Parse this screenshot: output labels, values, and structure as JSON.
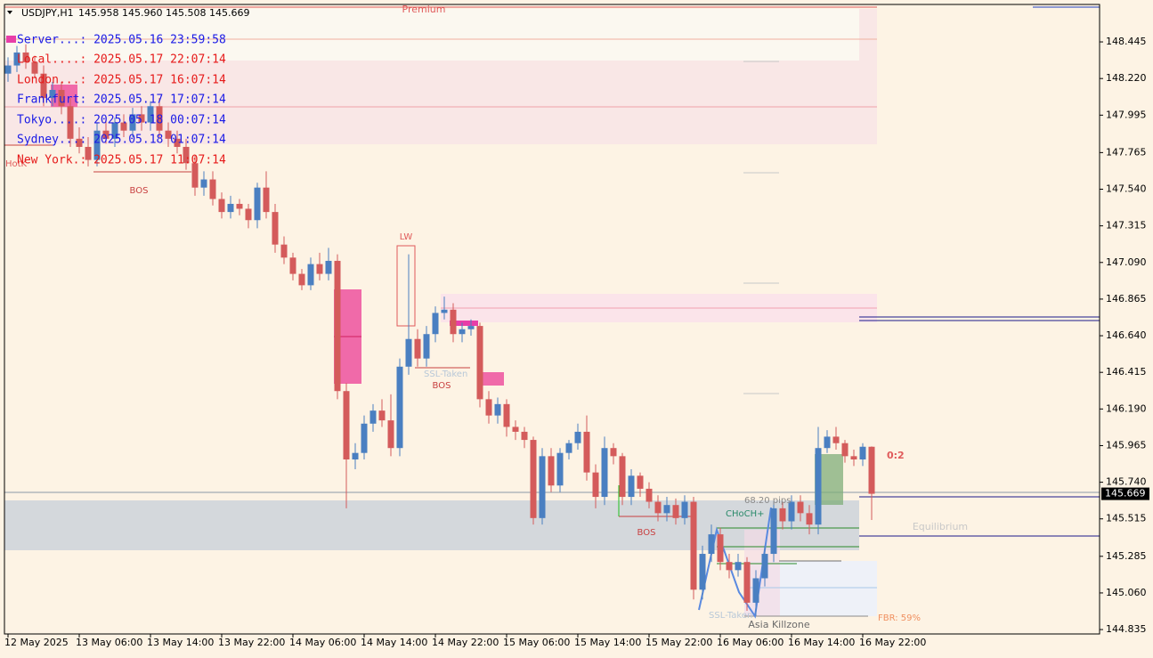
{
  "header": {
    "symbol": "USDJPY,H1",
    "ohlc": "145.958 145.960 145.508 145.669"
  },
  "clock": [
    {
      "text": "Server...: 2025.05.16 23:59:58",
      "color": "#1a1ae6"
    },
    {
      "text": "Local....: 2025.05.17 22:07:14",
      "color": "#e61a1a"
    },
    {
      "text": "London...: 2025.05.17 16:07:14",
      "color": "#e61a1a"
    },
    {
      "text": "Frankfurt: 2025.05.17 17:07:14",
      "color": "#1a1ae6"
    },
    {
      "text": "Tokyo....: 2025.05.18 00:07:14",
      "color": "#1a1ae6"
    },
    {
      "text": "Sydney...: 2025.05.18 01:07:14",
      "color": "#1a1ae6"
    },
    {
      "text": "New York.: 2025.05.17 11:07:14",
      "color": "#e61a1a"
    }
  ],
  "annotations": [
    "Premium",
    "BOS",
    "BOS",
    "BOS",
    "LW",
    "SSL-Taken",
    "SSL-Taken",
    "CHoCH+",
    "68.20 pips",
    "Asia Killzone",
    "Equilibrium",
    "FBR: 59%",
    "0:2",
    "HotK"
  ],
  "chart_data": {
    "type": "candlestick",
    "up_color": "#4a7fc1",
    "down_color": "#d45b5b",
    "ylim": [
      144.808,
      148.675
    ],
    "yticks": [
      148.445,
      {
        "value": 148.22,
        "label": "148.220"
      },
      147.995,
      147.765,
      {
        "value": 147.54,
        "label": "147.540"
      },
      147.315,
      {
        "value": 147.09,
        "label": "147.090"
      },
      146.865,
      {
        "value": 146.64,
        "label": "146.640"
      },
      146.415,
      {
        "value": 146.19,
        "label": "146.190"
      },
      145.965,
      {
        "value": 145.74,
        "label": "145.740"
      },
      145.515,
      145.285,
      {
        "value": 145.06,
        "label": "145.060"
      },
      144.835
    ],
    "categories": [
      "12 May 2025",
      null,
      null,
      null,
      null,
      null,
      null,
      null,
      "13 May 06:00",
      null,
      null,
      null,
      null,
      null,
      null,
      null,
      "13 May 14:00",
      null,
      null,
      null,
      null,
      null,
      null,
      null,
      "13 May 22:00",
      null,
      null,
      null,
      null,
      null,
      null,
      null,
      "14 May 06:00",
      null,
      null,
      null,
      null,
      null,
      null,
      null,
      "14 May 14:00",
      null,
      null,
      null,
      null,
      null,
      null,
      null,
      "14 May 22:00",
      null,
      null,
      null,
      null,
      null,
      null,
      null,
      "15 May 06:00",
      null,
      null,
      null,
      null,
      null,
      null,
      null,
      "15 May 14:00",
      null,
      null,
      null,
      null,
      null,
      null,
      null,
      "15 May 22:00",
      null,
      null,
      null,
      null,
      null,
      null,
      null,
      "16 May 06:00",
      null,
      null,
      null,
      null,
      null,
      null,
      null,
      "16 May 14:00",
      null,
      null,
      null,
      null,
      null,
      null,
      null,
      "16 May 22:00",
      null
    ],
    "open": [
      148.25,
      148.3,
      148.38,
      148.32,
      148.25,
      148.1,
      148.15,
      148.05,
      147.85,
      147.8,
      147.72,
      147.9,
      147.85,
      147.95,
      147.9,
      148.0,
      147.95,
      148.05,
      147.9,
      147.85,
      147.8,
      147.7,
      147.55,
      147.6,
      147.48,
      147.4,
      147.45,
      147.42,
      147.35,
      147.55,
      147.4,
      147.2,
      147.12,
      147.02,
      146.95,
      147.08,
      147.02,
      147.1,
      146.3,
      145.88,
      145.92,
      146.1,
      146.18,
      146.12,
      145.95,
      146.45,
      146.62,
      146.5,
      146.65,
      146.78,
      146.8,
      146.65,
      146.68,
      146.7,
      146.25,
      146.15,
      146.22,
      146.08,
      146.05,
      146.0,
      145.52,
      145.9,
      145.72,
      145.92,
      145.98,
      146.05,
      145.8,
      145.65,
      145.95,
      145.9,
      145.65,
      145.78,
      145.7,
      145.62,
      145.55,
      145.6,
      145.52,
      145.62,
      145.08,
      145.3,
      145.42,
      145.25,
      145.2,
      145.25,
      145.0,
      145.15,
      145.3,
      145.58,
      145.5,
      145.62,
      145.55,
      145.48,
      145.95,
      146.02,
      145.98,
      145.9,
      145.88,
      145.958
    ],
    "high": [
      148.35,
      148.42,
      148.43,
      148.36,
      148.3,
      148.2,
      148.2,
      148.1,
      147.92,
      147.86,
      147.95,
      147.96,
      147.98,
      148.0,
      148.04,
      148.05,
      148.08,
      148.1,
      147.95,
      147.9,
      147.85,
      147.75,
      147.65,
      147.65,
      147.52,
      147.5,
      147.48,
      147.45,
      147.58,
      147.65,
      147.45,
      147.25,
      147.15,
      147.05,
      147.12,
      147.15,
      147.18,
      147.14,
      146.35,
      145.98,
      146.15,
      146.22,
      146.25,
      146.28,
      146.5,
      147.14,
      146.68,
      146.7,
      146.82,
      146.88,
      146.84,
      146.72,
      146.74,
      146.72,
      146.3,
      146.26,
      146.25,
      146.12,
      146.08,
      146.02,
      145.95,
      145.95,
      145.95,
      146.0,
      146.1,
      146.15,
      145.85,
      146.02,
      145.98,
      145.92,
      145.82,
      145.8,
      145.74,
      145.66,
      145.65,
      145.64,
      145.66,
      145.65,
      145.35,
      145.48,
      145.46,
      145.3,
      145.3,
      145.28,
      145.2,
      145.35,
      145.62,
      145.62,
      145.66,
      145.66,
      145.6,
      146.08,
      146.06,
      146.08,
      146.0,
      145.94,
      145.98,
      145.96
    ],
    "low": [
      148.2,
      148.26,
      148.28,
      148.22,
      148.05,
      148.05,
      148.0,
      147.8,
      147.76,
      147.68,
      147.68,
      147.82,
      147.8,
      147.86,
      147.86,
      147.9,
      147.9,
      147.86,
      147.8,
      147.76,
      147.66,
      147.5,
      147.5,
      147.44,
      147.36,
      147.36,
      147.38,
      147.3,
      147.3,
      147.36,
      147.15,
      147.08,
      146.98,
      146.92,
      146.92,
      146.98,
      146.98,
      146.25,
      145.58,
      145.82,
      145.88,
      146.05,
      146.08,
      145.9,
      145.9,
      146.4,
      146.45,
      146.45,
      146.6,
      146.74,
      146.6,
      146.6,
      146.64,
      146.2,
      146.1,
      146.1,
      146.02,
      146.0,
      145.95,
      145.48,
      145.48,
      145.68,
      145.68,
      145.88,
      145.94,
      145.75,
      145.58,
      145.6,
      145.85,
      145.6,
      145.6,
      145.65,
      145.58,
      145.5,
      145.5,
      145.48,
      145.48,
      145.02,
      145.02,
      145.25,
      145.2,
      145.15,
      145.16,
      144.95,
      144.92,
      145.1,
      145.25,
      145.45,
      145.45,
      145.5,
      145.42,
      145.42,
      145.92,
      145.94,
      145.86,
      145.84,
      145.84,
      145.508
    ],
    "close": [
      148.3,
      148.38,
      148.32,
      148.25,
      148.1,
      148.15,
      148.05,
      147.85,
      147.8,
      147.72,
      147.9,
      147.85,
      147.95,
      147.9,
      148.0,
      147.95,
      148.05,
      147.9,
      147.85,
      147.8,
      147.7,
      147.55,
      147.6,
      147.48,
      147.4,
      147.45,
      147.42,
      147.35,
      147.55,
      147.4,
      147.2,
      147.12,
      147.02,
      146.95,
      147.08,
      147.02,
      147.1,
      146.3,
      145.88,
      145.92,
      146.1,
      146.18,
      146.12,
      145.95,
      146.45,
      146.62,
      146.5,
      146.65,
      146.78,
      146.8,
      146.65,
      146.68,
      146.7,
      146.25,
      146.15,
      146.22,
      146.08,
      146.05,
      146.0,
      145.52,
      145.9,
      145.72,
      145.92,
      145.98,
      146.05,
      145.8,
      145.65,
      145.95,
      145.9,
      145.65,
      145.78,
      145.7,
      145.62,
      145.55,
      145.6,
      145.52,
      145.62,
      145.08,
      145.3,
      145.42,
      145.25,
      145.2,
      145.25,
      145.0,
      145.15,
      145.3,
      145.58,
      145.5,
      145.62,
      145.55,
      145.48,
      145.95,
      146.02,
      145.98,
      145.9,
      145.88,
      145.958,
      145.669
    ]
  }
}
